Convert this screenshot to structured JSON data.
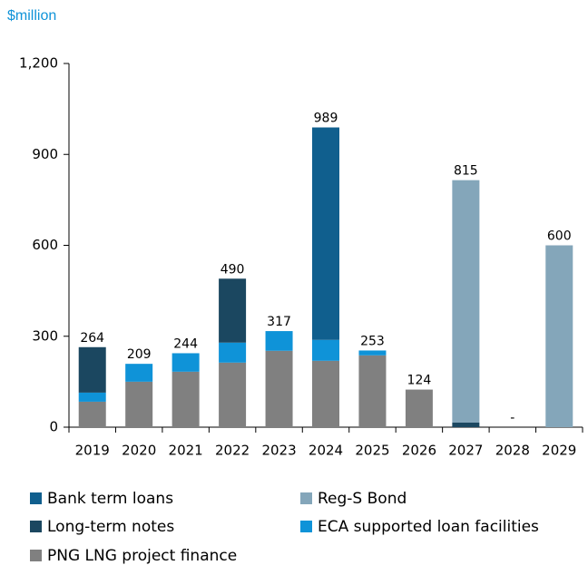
{
  "chart_data": {
    "type": "stacked_bar",
    "y_axis_label": "$million",
    "categories": [
      "2019",
      "2020",
      "2021",
      "2022",
      "2023",
      "2024",
      "2025",
      "2026",
      "2027",
      "2028",
      "2029"
    ],
    "series": [
      {
        "name": "PNG LNG project finance",
        "color": "#808080",
        "values": [
          84,
          150,
          183,
          213,
          252,
          219,
          237,
          124,
          0,
          0,
          0
        ]
      },
      {
        "name": "ECA supported loan facilities",
        "color": "#0f93d8",
        "values": [
          30,
          59,
          61,
          66,
          65,
          69,
          16,
          0,
          0,
          0,
          0
        ]
      },
      {
        "name": "Long-term notes",
        "color": "#1b4760",
        "values": [
          150,
          0,
          0,
          211,
          0,
          0,
          0,
          0,
          15,
          0,
          0
        ]
      },
      {
        "name": "Bank term loans",
        "color": "#105f8e",
        "values": [
          0,
          0,
          0,
          0,
          0,
          701,
          0,
          0,
          0,
          0,
          0
        ]
      },
      {
        "name": "Reg-S Bond",
        "color": "#84a6ba",
        "values": [
          0,
          0,
          0,
          0,
          0,
          0,
          0,
          0,
          800,
          0,
          600
        ]
      }
    ],
    "totals": [
      264,
      209,
      244,
      490,
      317,
      989,
      253,
      124,
      815,
      {
        "value": 0,
        "label": "-"
      },
      600
    ],
    "ylim": [
      0,
      1200
    ],
    "yticks": [
      0,
      300,
      600,
      900,
      {
        "value": 1200,
        "label": "1,200"
      }
    ]
  }
}
